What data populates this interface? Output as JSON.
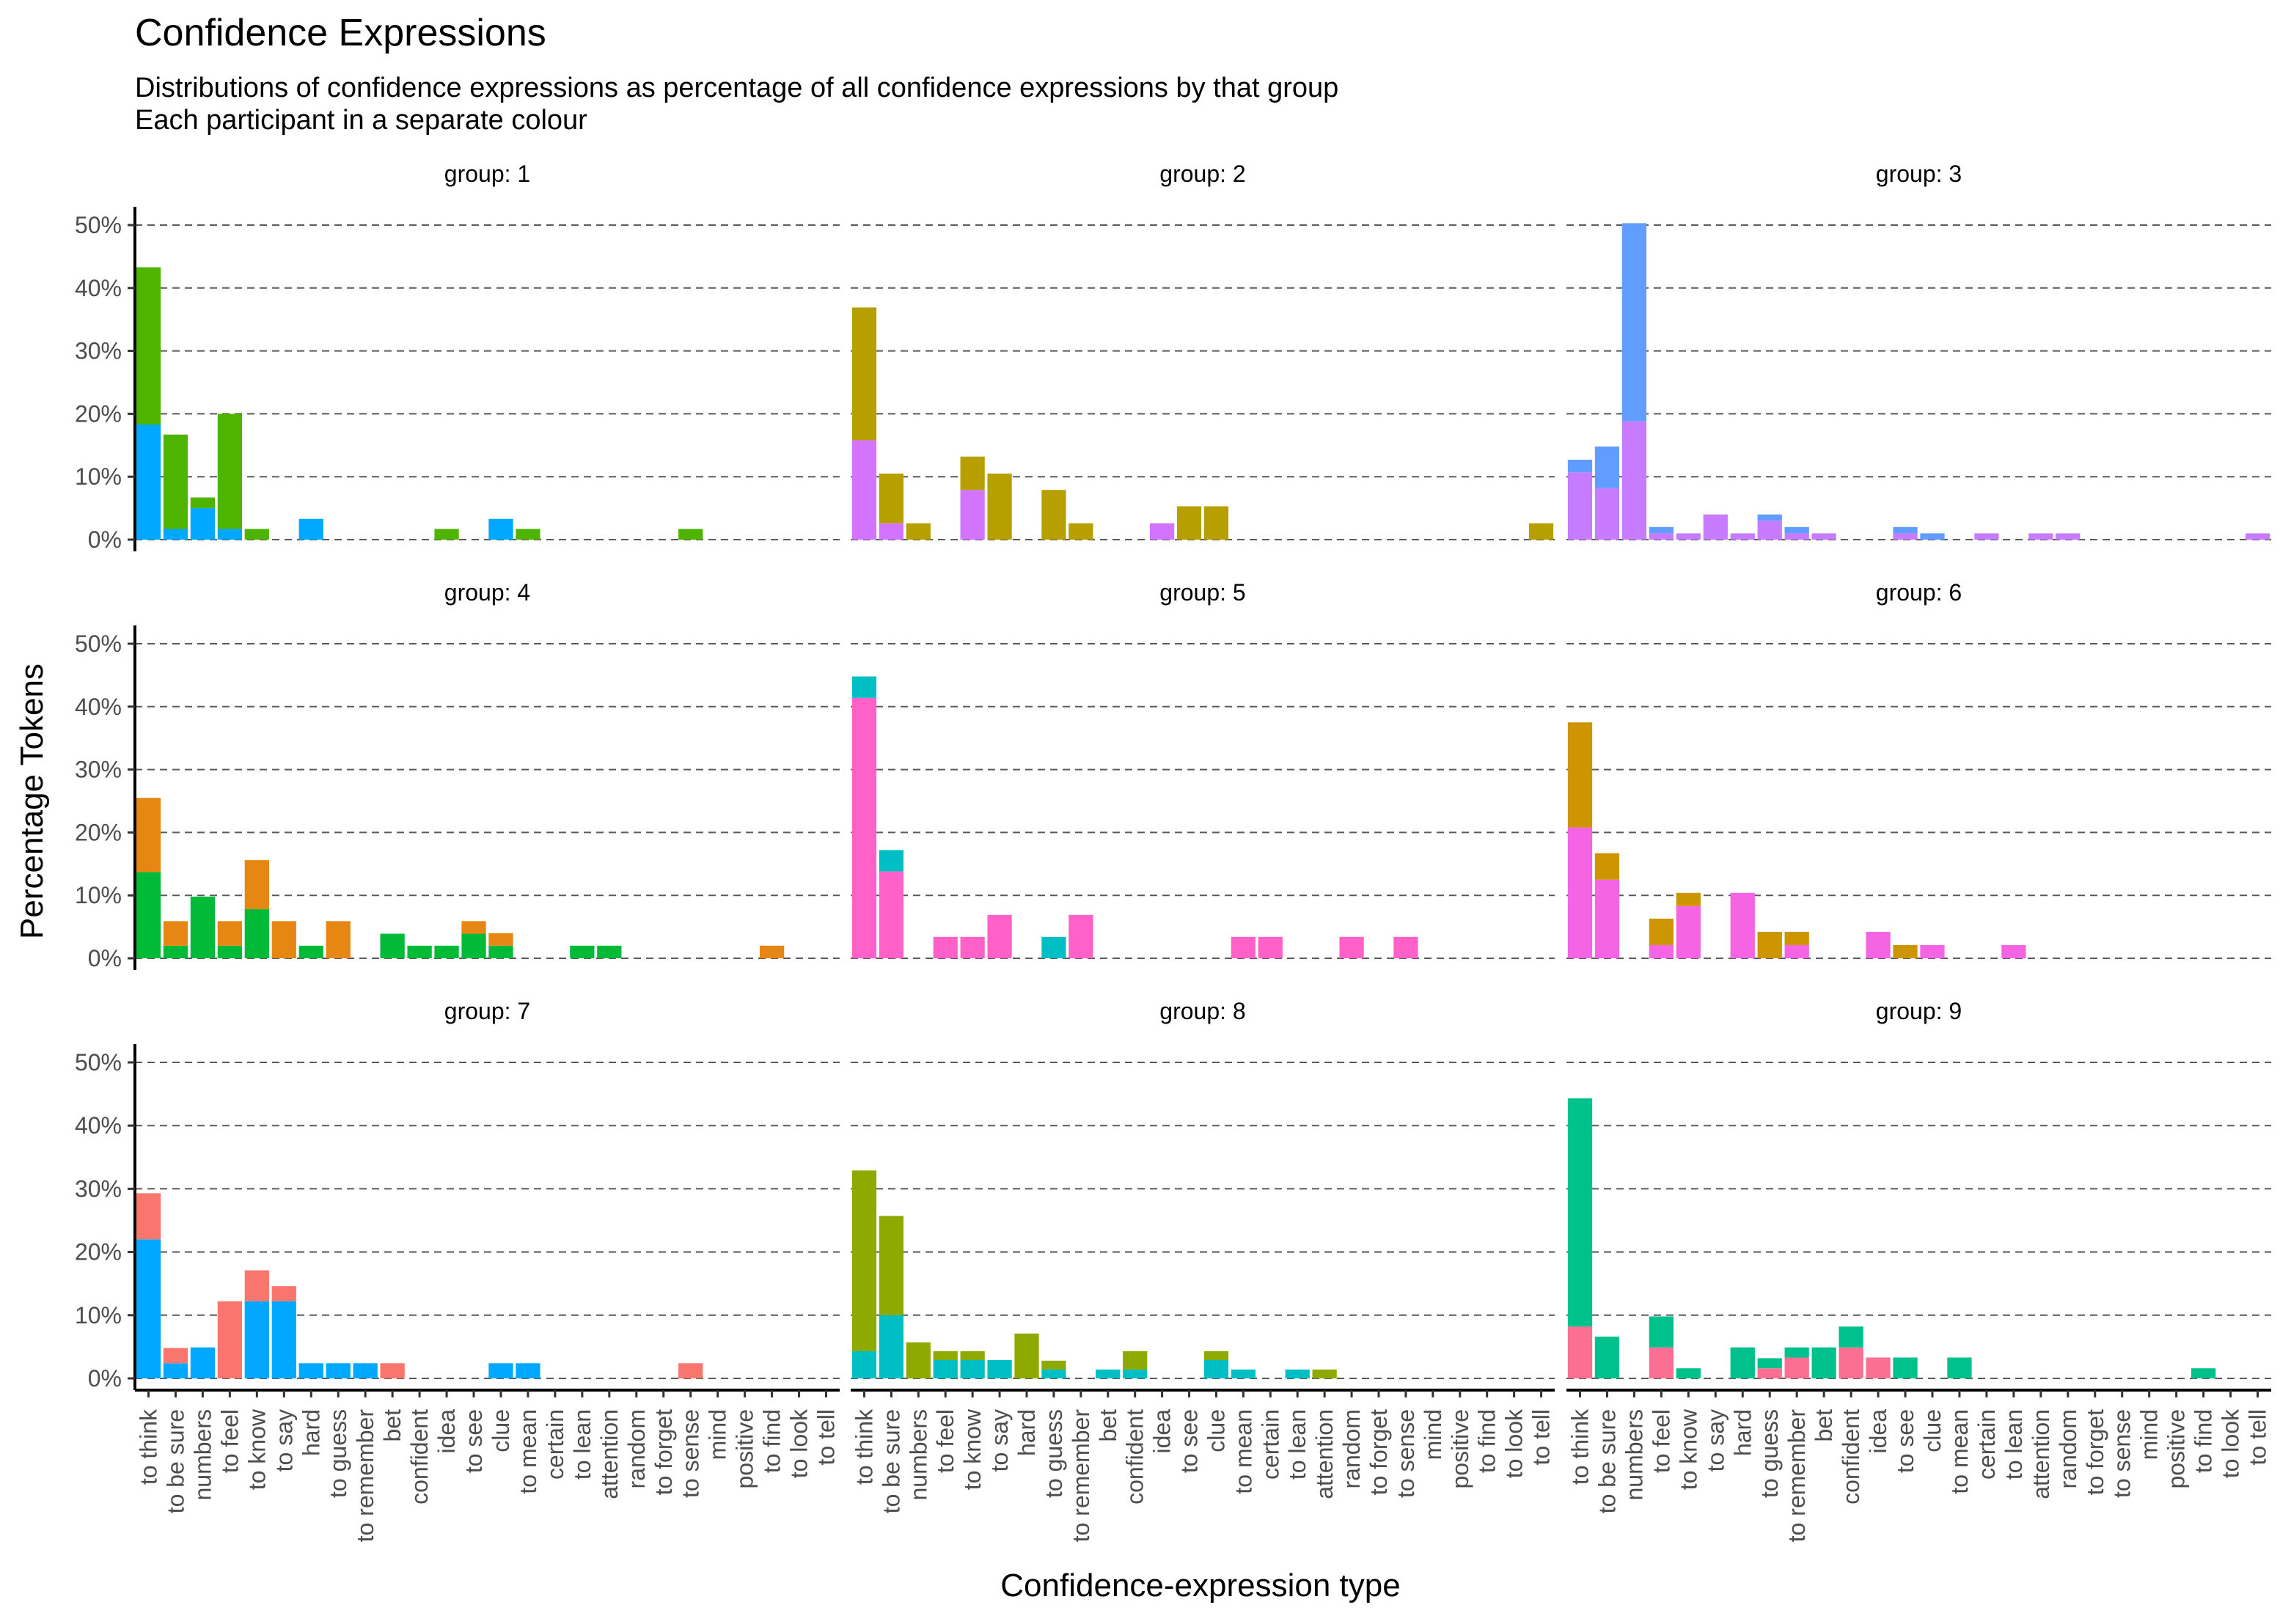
{
  "chart_data": {
    "type": "bar",
    "stacked": true,
    "title": "Confidence Expressions",
    "subtitle_lines": [
      "Distributions of confidence expressions as percentage of all confidence expressions by that group",
      "Each participant in a separate colour"
    ],
    "xlabel": "Confidence-expression type",
    "ylabel": "Percentage Tokens",
    "ylim": [
      0,
      50
    ],
    "yticks": [
      "0%",
      "10%",
      "20%",
      "30%",
      "40%",
      "50%"
    ],
    "ytick_values": [
      0,
      10,
      20,
      30,
      40,
      50
    ],
    "grid": "horizontal dashed",
    "categories": [
      "to think",
      "to be sure",
      "numbers",
      "to feel",
      "to know",
      "to say",
      "hard",
      "to guess",
      "to remember",
      "bet",
      "confident",
      "idea",
      "to see",
      "clue",
      "to mean",
      "certain",
      "to lean",
      "attention",
      "random",
      "to forget",
      "to sense",
      "mind",
      "positive",
      "to find",
      "to look",
      "to tell"
    ],
    "panels": [
      {
        "label": "group: 1",
        "series": [
          {
            "color": "#00a9ff",
            "values": {
              "to think": 18.3,
              "to be sure": 1.7,
              "numbers": 5,
              "to feel": 1.7,
              "hard": 3.3,
              "clue": 3.3
            }
          },
          {
            "color": "#4fb400",
            "values": {
              "to think": 25,
              "to be sure": 15,
              "numbers": 1.7,
              "to feel": 18.3,
              "to know": 1.7,
              "idea": 1.7,
              "to mean": 1.7,
              "to sense": 1.7
            }
          }
        ]
      },
      {
        "label": "group: 2",
        "series": [
          {
            "color": "#d374ff",
            "values": {
              "to think": 15.8,
              "to be sure": 2.6,
              "to know": 7.9,
              "idea": 2.6
            }
          },
          {
            "color": "#b79f00",
            "values": {
              "to think": 21.1,
              "to be sure": 7.9,
              "numbers": 2.6,
              "to know": 5.3,
              "to say": 10.5,
              "to guess": 7.9,
              "to remember": 2.6,
              "to see": 5.3,
              "clue": 5.3,
              "to tell": 2.6
            }
          }
        ]
      },
      {
        "label": "group: 3",
        "series": [
          {
            "color": "#c77cff",
            "values": {
              "to think": 10.7,
              "to be sure": 8.2,
              "numbers": 18.8,
              "to feel": 1,
              "to know": 1,
              "to say": 4,
              "hard": 1,
              "to guess": 3,
              "to remember": 1,
              "bet": 1,
              "to see": 1,
              "certain": 1,
              "attention": 1,
              "random": 1,
              "to tell": 1
            }
          },
          {
            "color": "#619cff",
            "values": {
              "to think": 2,
              "to be sure": 6.6,
              "numbers": 31.5,
              "to feel": 1,
              "to guess": 1,
              "to remember": 1,
              "to see": 1,
              "clue": 1
            }
          }
        ]
      },
      {
        "label": "group: 4",
        "series": [
          {
            "color": "#00ba38",
            "values": {
              "to think": 13.7,
              "to be sure": 2,
              "numbers": 9.8,
              "to feel": 2,
              "to know": 7.8,
              "hard": 2,
              "bet": 3.9,
              "confident": 2,
              "idea": 2,
              "to see": 3.9,
              "clue": 2,
              "to lean": 2,
              "attention": 2
            }
          },
          {
            "color": "#e68613",
            "values": {
              "to think": 11.8,
              "to be sure": 3.9,
              "to feel": 3.9,
              "to know": 7.8,
              "to say": 5.9,
              "to guess": 5.9,
              "to see": 2,
              "clue": 2,
              "to find": 2
            }
          }
        ]
      },
      {
        "label": "group: 5",
        "series": [
          {
            "color": "#ff61c9",
            "values": {
              "to think": 41.4,
              "to be sure": 13.8,
              "to feel": 3.4,
              "to know": 3.4,
              "to say": 6.9,
              "to remember": 6.9,
              "to mean": 3.4,
              "certain": 3.4,
              "random": 3.4,
              "to sense": 3.4
            }
          },
          {
            "color": "#00bfc4",
            "values": {
              "to think": 3.4,
              "to be sure": 3.4,
              "to guess": 3.4
            }
          }
        ]
      },
      {
        "label": "group: 6",
        "series": [
          {
            "color": "#f564e3",
            "values": {
              "to think": 20.8,
              "to be sure": 12.5,
              "to feel": 2.1,
              "to know": 8.3,
              "hard": 10.4,
              "to remember": 2.1,
              "idea": 4.2,
              "clue": 2.1,
              "to lean": 2.1
            }
          },
          {
            "color": "#cd9600",
            "values": {
              "to think": 16.7,
              "to be sure": 4.2,
              "to feel": 4.2,
              "to know": 2.1,
              "to guess": 4.2,
              "to remember": 2.1,
              "to see": 2.1
            }
          }
        ]
      },
      {
        "label": "group: 7",
        "series": [
          {
            "color": "#00a9ff",
            "values": {
              "to think": 22,
              "to be sure": 2.4,
              "numbers": 4.9,
              "to know": 12.2,
              "to say": 12.2,
              "hard": 2.4,
              "to guess": 2.4,
              "to remember": 2.4,
              "clue": 2.4,
              "to mean": 2.4
            }
          },
          {
            "color": "#f8766d",
            "values": {
              "to think": 7.3,
              "to be sure": 2.4,
              "to feel": 12.2,
              "to know": 4.9,
              "to say": 2.4,
              "bet": 2.4,
              "to sense": 2.4
            }
          }
        ]
      },
      {
        "label": "group: 8",
        "series": [
          {
            "color": "#00bfc4",
            "values": {
              "to think": 4.3,
              "to be sure": 10,
              "to feel": 2.9,
              "to know": 2.9,
              "to say": 2.9,
              "to guess": 1.4,
              "bet": 1.4,
              "confident": 1.4,
              "clue": 2.9,
              "to mean": 1.4,
              "to lean": 1.4
            }
          },
          {
            "color": "#8ea900",
            "values": {
              "to think": 28.6,
              "to be sure": 15.7,
              "numbers": 5.7,
              "to feel": 1.4,
              "to know": 1.4,
              "hard": 7.1,
              "to guess": 1.4,
              "confident": 2.9,
              "clue": 1.4,
              "attention": 1.4
            }
          }
        ]
      },
      {
        "label": "group: 9",
        "series": [
          {
            "color": "#fb6f92",
            "values": {
              "to think": 8.2,
              "to feel": 4.9,
              "to guess": 1.6,
              "to remember": 3.3,
              "confident": 4.9,
              "idea": 3.3
            }
          },
          {
            "color": "#00c08b",
            "values": {
              "to think": 36.1,
              "to be sure": 6.6,
              "to feel": 4.9,
              "to know": 1.6,
              "hard": 4.9,
              "to guess": 1.6,
              "to remember": 1.6,
              "bet": 4.9,
              "confident": 3.3,
              "to see": 3.3,
              "to mean": 3.3,
              "to find": 1.6
            }
          }
        ]
      }
    ]
  }
}
